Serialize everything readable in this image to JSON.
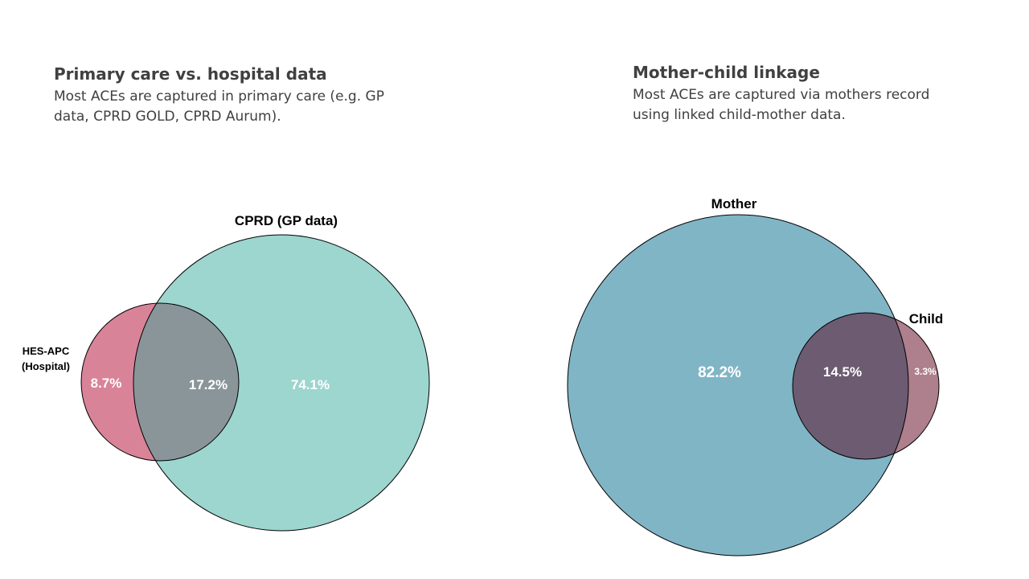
{
  "left_panel": {
    "title": "Primary care vs. hospital data",
    "description": "Most ACEs are captured in primary care (e.g. GP data, CPRD GOLD, CPRD Aurum).",
    "sets": {
      "small": {
        "label_line1": "HES-APC",
        "label_line2": "(Hospital)",
        "color": "#d98399"
      },
      "large": {
        "label": "CPRD (GP data)",
        "color": "#9dd5cf"
      },
      "overlap_color": "#8a9599"
    },
    "regions": {
      "small_only": "8.7%",
      "overlap": "17.2%",
      "large_only": "74.1%"
    }
  },
  "right_panel": {
    "title": "Mother-child linkage",
    "description": "Most ACEs are captured via mothers record using linked child-mother data.",
    "sets": {
      "large": {
        "label": "Mother",
        "color": "#80b5c6"
      },
      "small": {
        "label": "Child",
        "color": "#ae7f8c"
      },
      "overlap_color": "#6c5b71"
    },
    "regions": {
      "large_only": "82.2%",
      "overlap": "14.5%",
      "small_only": "3.3%"
    }
  }
}
